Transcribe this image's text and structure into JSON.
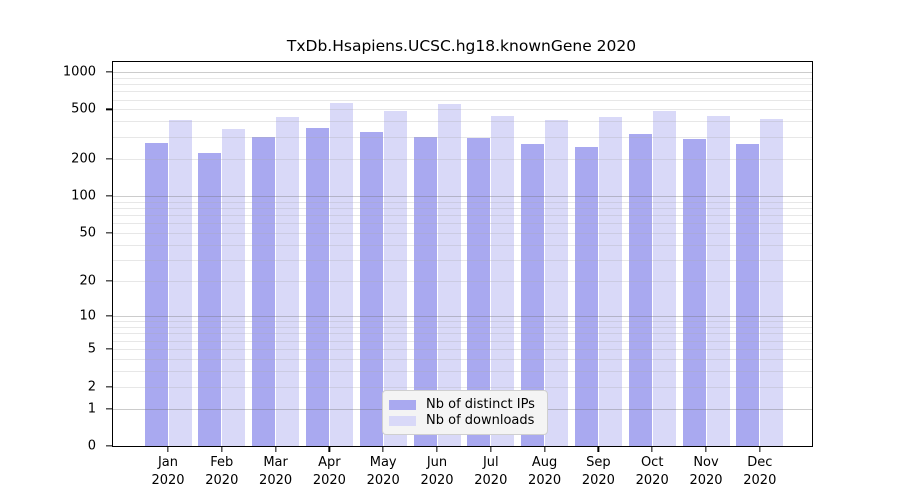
{
  "chart_data": {
    "type": "bar",
    "title": "TxDb.Hsapiens.UCSC.hg18.knownGene 2020",
    "categories": [
      "Jan",
      "Feb",
      "Mar",
      "Apr",
      "May",
      "Jun",
      "Jul",
      "Aug",
      "Sep",
      "Oct",
      "Nov",
      "Dec"
    ],
    "x_year": "2020",
    "series": [
      {
        "name": "Nb of distinct IPs",
        "color": "#a9a9f0",
        "values": [
          270,
          224,
          301,
          352,
          330,
          300,
          295,
          262,
          250,
          315,
          290,
          265
        ]
      },
      {
        "name": "Nb of downloads",
        "color": "#d9d9f8",
        "values": [
          408,
          345,
          436,
          565,
          485,
          549,
          442,
          410,
          436,
          485,
          442,
          420
        ]
      }
    ],
    "y_ticks": [
      1000,
      500,
      200,
      100,
      50,
      20,
      10,
      5,
      2,
      1,
      0
    ],
    "y_scale": "log10(v+1)",
    "ylim": [
      0,
      1200
    ],
    "grid": true,
    "grid_major_values": [
      1,
      10,
      100,
      1000
    ],
    "grid_minor_values": [
      2,
      3,
      4,
      5,
      6,
      7,
      8,
      9,
      20,
      30,
      40,
      50,
      60,
      70,
      80,
      90,
      200,
      300,
      400,
      500,
      600,
      700,
      800,
      900
    ],
    "grid_major_color": "rgba(110,110,110,0.35)",
    "grid_minor_color": "rgba(170,170,170,0.28)",
    "axis_color": "#000000",
    "background_color": "#ffffff",
    "legend_position": "lower center",
    "xlabel": "",
    "ylabel": ""
  }
}
